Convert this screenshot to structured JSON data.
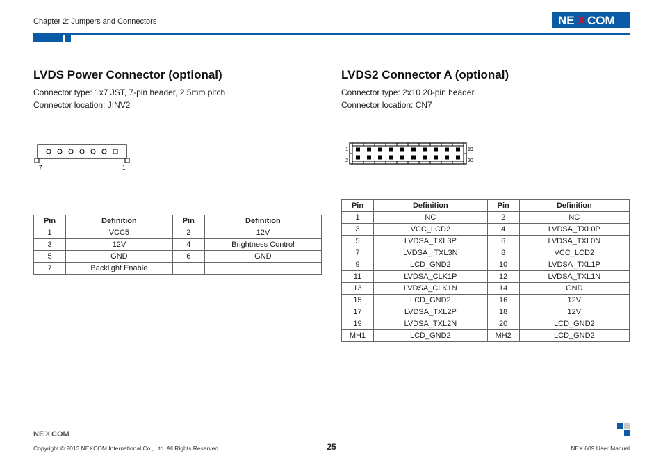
{
  "header": {
    "chapter": "Chapter 2: Jumpers and Connectors",
    "logo_text": "NEXCOM",
    "logo_bg": "#0b5aa6",
    "logo_accent": "#c8102e",
    "logo_text_color": "#ffffff"
  },
  "left": {
    "title": "LVDS Power Connector (optional)",
    "type_line": "Connector type: 1x7 JST, 7-pin header, 2.5mm pitch",
    "loc_line": "Connector location: JINV2",
    "diagram": {
      "pins": 7,
      "left_label": "7",
      "right_label": "1",
      "stroke": "#000000",
      "fill": "#ffffff"
    },
    "table": {
      "headers": [
        "Pin",
        "Definition",
        "Pin",
        "Definition"
      ],
      "rows": [
        [
          "1",
          "VCC5",
          "2",
          "12V"
        ],
        [
          "3",
          "12V",
          "4",
          "Brightness Control"
        ],
        [
          "5",
          "GND",
          "6",
          "GND"
        ],
        [
          "7",
          "Backlight Enable",
          "",
          ""
        ]
      ]
    }
  },
  "right": {
    "title": "LVDS2 Connector A (optional)",
    "type_line": "Connector type: 2x10 20-pin header",
    "loc_line": "Connector location: CN7",
    "diagram": {
      "cols": 10,
      "rows": 2,
      "labels": {
        "tl": "1",
        "bl": "2",
        "tr": "19",
        "br": "20"
      },
      "stroke": "#000000"
    },
    "table": {
      "headers": [
        "Pin",
        "Definition",
        "Pin",
        "Definition"
      ],
      "rows": [
        [
          "1",
          "NC",
          "2",
          "NC"
        ],
        [
          "3",
          "VCC_LCD2",
          "4",
          "LVDSA_TXL0P"
        ],
        [
          "5",
          "LVDSA_TXL3P",
          "6",
          "LVDSA_TXL0N"
        ],
        [
          "7",
          "LVDSA_ TXL3N",
          "8",
          "VCC_LCD2"
        ],
        [
          "9",
          "LCD_GND2",
          "10",
          "LVDSA_TXL1P"
        ],
        [
          "11",
          "LVDSA_CLK1P",
          "12",
          "LVDSA_TXL1N"
        ],
        [
          "13",
          "LVDSA_CLK1N",
          "14",
          "GND"
        ],
        [
          "15",
          "LCD_GND2",
          "16",
          "12V"
        ],
        [
          "17",
          "LVDSA_TXL2P",
          "18",
          "12V"
        ],
        [
          "19",
          "LVDSA_TXL2N",
          "20",
          "LCD_GND2"
        ],
        [
          "MH1",
          "LCD_GND2",
          "MH2",
          "LCD_GND2"
        ]
      ]
    }
  },
  "footer": {
    "logo_text": "NEXCOM",
    "copyright": "Copyright © 2013 NEXCOM International Co., Ltd. All Rights Reserved.",
    "page_number": "25",
    "manual": "NEX 609 User Manual"
  },
  "colors": {
    "rule": "#0b5aa6",
    "border": "#666666",
    "text": "#222222"
  }
}
